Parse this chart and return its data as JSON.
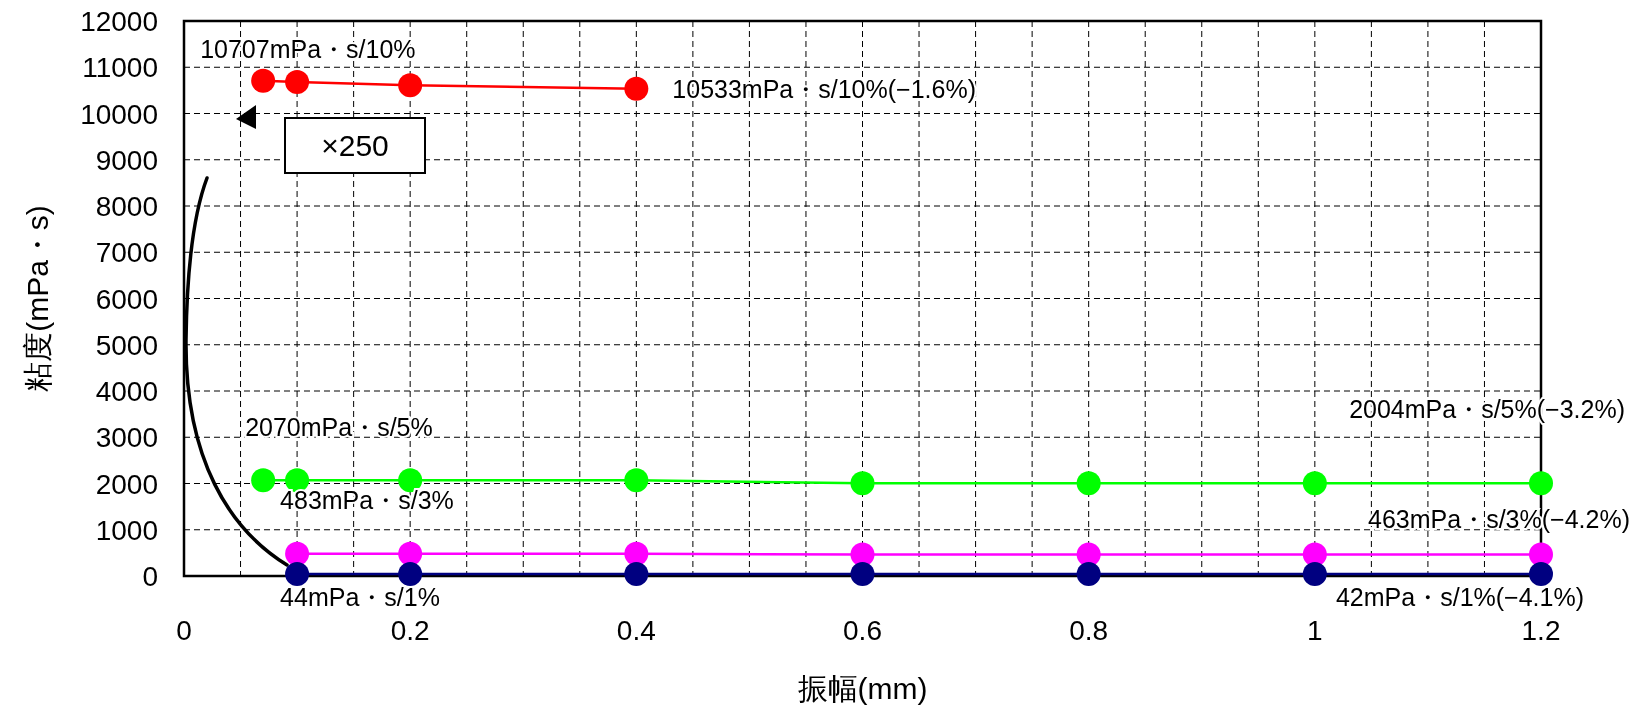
{
  "chart_data": {
    "type": "line",
    "xlabel": "振幅(mm)",
    "ylabel": "粘度(mPa・s)",
    "marker": "circle",
    "grid": true,
    "xlim": [
      0,
      1.2
    ],
    "ylim": [
      0,
      12000
    ],
    "xticks": [
      0,
      {
        "value": 0.05,
        "label": null
      },
      {
        "value": 0.1,
        "label": null
      },
      {
        "value": 0.15,
        "label": null
      },
      0.2,
      {
        "value": 0.25,
        "label": null
      },
      {
        "value": 0.3,
        "label": null
      },
      {
        "value": 0.35,
        "label": null
      },
      0.4,
      {
        "value": 0.45,
        "label": null
      },
      {
        "value": 0.5,
        "label": null
      },
      {
        "value": 0.55,
        "label": null
      },
      0.6,
      {
        "value": 0.65,
        "label": null
      },
      {
        "value": 0.7,
        "label": null
      },
      {
        "value": 0.75,
        "label": null
      },
      0.8,
      {
        "value": 0.85,
        "label": null
      },
      {
        "value": 0.9,
        "label": null
      },
      {
        "value": 0.95,
        "label": null
      },
      1,
      {
        "value": 1.05,
        "label": null
      },
      {
        "value": 1.1,
        "label": null
      },
      {
        "value": 1.15,
        "label": null
      },
      1.2
    ],
    "yticks": [
      0,
      1000,
      2000,
      3000,
      4000,
      5000,
      6000,
      7000,
      8000,
      9000,
      10000,
      11000,
      12000
    ],
    "series": [
      {
        "color": "#ff0000",
        "x": [
          0.07,
          0.1,
          0.2,
          0.4
        ],
        "values": [
          10707,
          10680,
          10610,
          10533
        ]
      },
      {
        "color": "#00ff00",
        "x": [
          0.07,
          0.1,
          0.2,
          0.4,
          0.6,
          0.8,
          1,
          1.2
        ],
        "values": [
          2070,
          2070,
          2070,
          2070,
          2004,
          2004,
          2004,
          2004
        ]
      },
      {
        "color": "#ff00ff",
        "x": [
          0.1,
          0.2,
          0.4,
          0.6,
          0.8,
          1,
          1.2
        ],
        "values": [
          483,
          483,
          483,
          463,
          463,
          463,
          463
        ]
      },
      {
        "color": "#000080",
        "x": [
          0.1,
          0.2,
          0.4,
          0.6,
          0.8,
          1,
          1.2
        ],
        "values": [
          44,
          44,
          44,
          42,
          42,
          42,
          42
        ]
      }
    ],
    "annotations": [
      {
        "text": "10707mPa・s/10%",
        "x": 0.07,
        "y": 10707
      },
      {
        "text": "10533mPa・s/10%(−1.6%)",
        "x": 0.4,
        "y": 10533
      },
      {
        "text": "2070mPa・s/5%",
        "x": 0.07,
        "y": 2070
      },
      {
        "text": "2004mPa・s/5%(−3.2%)",
        "x": 1.2,
        "y": 2004
      },
      {
        "text": "483mPa・s/3%",
        "x": 0.1,
        "y": 483
      },
      {
        "text": "463mPa・s/3%(−4.2%)",
        "x": 1.2,
        "y": 463
      },
      {
        "text": "44mPa・s/1%",
        "x": 0.1,
        "y": 44
      },
      {
        "text": "42mPa・s/1%(−4.1%)",
        "x": 1.2,
        "y": 42
      },
      "×250"
    ]
  }
}
